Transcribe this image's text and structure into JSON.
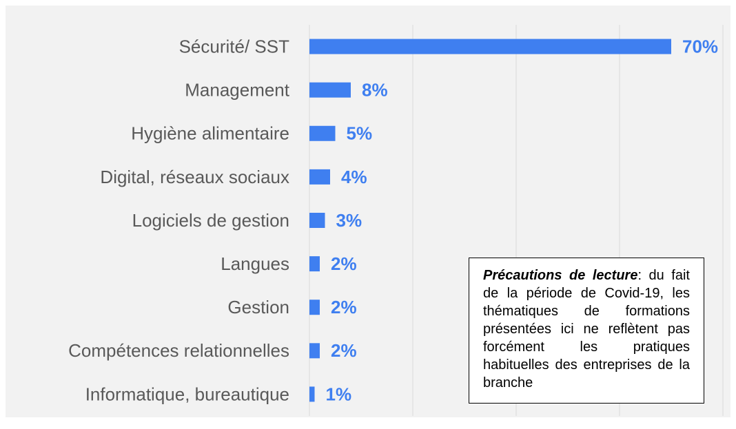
{
  "chart_data": {
    "type": "bar",
    "orientation": "horizontal",
    "categories": [
      "Sécurité/ SST",
      "Management",
      "Hygiène alimentaire",
      "Digital, réseaux sociaux",
      "Logiciels de gestion",
      "Langues",
      "Gestion",
      "Compétences relationnelles",
      "Informatique, bureautique"
    ],
    "values": [
      70,
      8,
      5,
      4,
      3,
      2,
      2,
      2,
      1
    ],
    "value_labels": [
      "70%",
      "8%",
      "5%",
      "4%",
      "3%",
      "2%",
      "2%",
      "2%",
      "1%"
    ],
    "color": "#3f7ff0",
    "xlim": [
      0,
      80
    ],
    "xticks": [
      0,
      20,
      40,
      60,
      80
    ],
    "grid": true,
    "annotation": {
      "title": "Précautions de lecture",
      "text": ": du fait de la période de Covid-19, les thématiques de formations présentées ici ne reflètent pas forcément les pratiques habituelles des entreprises de la branche"
    }
  }
}
